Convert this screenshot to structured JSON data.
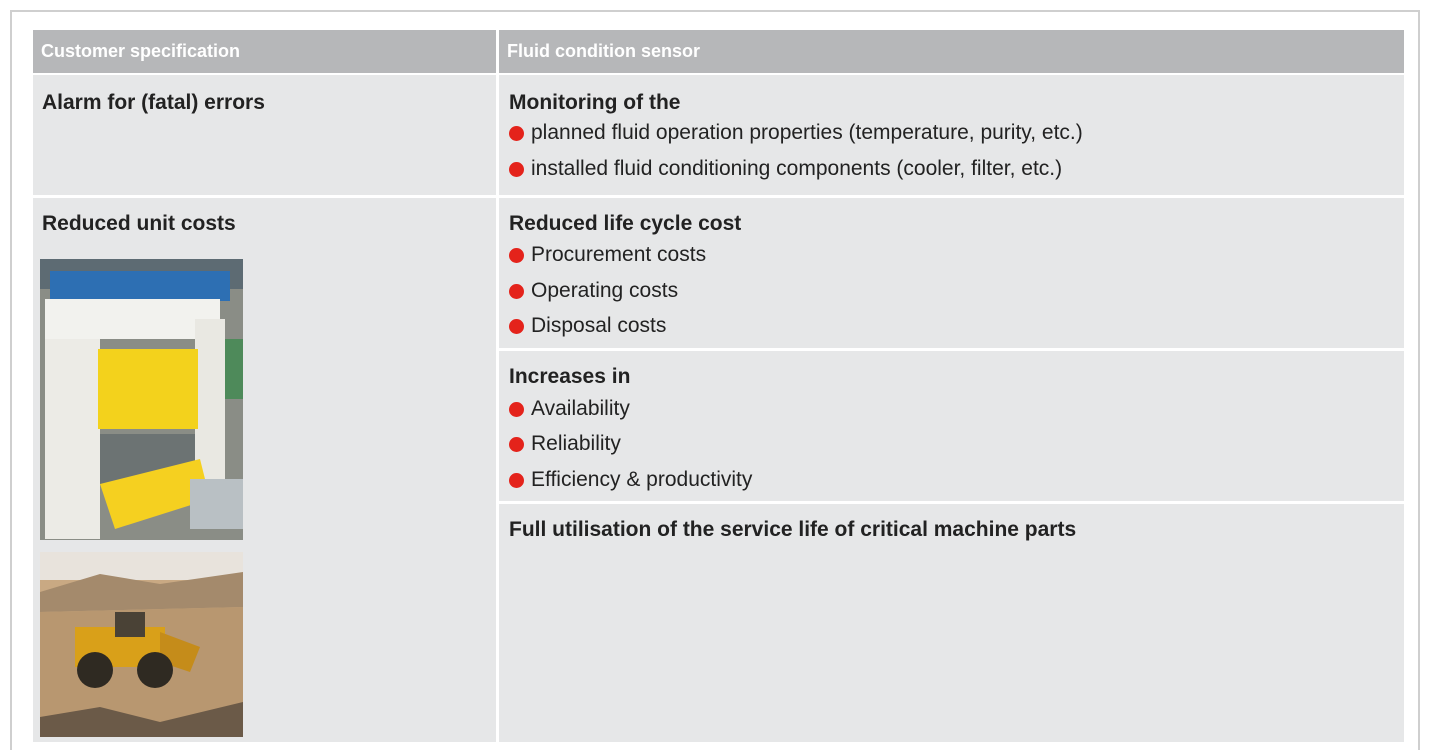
{
  "table": {
    "header": [
      "Customer specification",
      "Fluid condition sensor"
    ],
    "rows": [
      {
        "left": "Alarm for (fatal) errors",
        "right": [
          {
            "heading": "Monitoring of the",
            "items": [
              "planned fluid operation properties (temperature, purity, etc.)",
              "installed fluid conditioning components (cooler, filter, etc.)"
            ]
          }
        ]
      },
      {
        "left": "Reduced unit costs",
        "right": [
          {
            "heading": "Reduced life cycle cost",
            "items": [
              "Procurement costs",
              "Operating costs",
              "Disposal costs"
            ]
          },
          {
            "heading": "Increases in",
            "items": [
              "Availability",
              "Reliability",
              "Efficiency & productivity"
            ]
          },
          {
            "heading": "Full utilisation of the service life of critical machine parts"
          }
        ]
      }
    ]
  }
}
